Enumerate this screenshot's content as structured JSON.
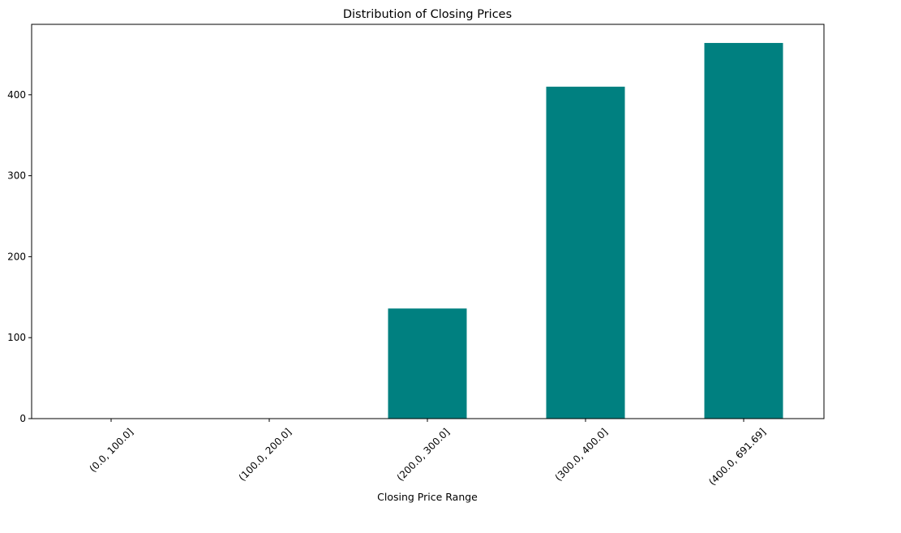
{
  "chart_data": {
    "type": "bar",
    "title": "Distribution of Closing Prices",
    "xlabel": "Closing Price Range",
    "ylabel": "",
    "categories": [
      "(0.0, 100.0]",
      "(100.0, 200.0]",
      "(200.0, 300.0]",
      "(300.0, 400.0]",
      "(400.0, 691.69]"
    ],
    "values": [
      0,
      0,
      136,
      410,
      464
    ],
    "ylim": [
      0,
      487
    ],
    "yticks": [
      0,
      100,
      200,
      300,
      400
    ],
    "bar_color": "#008080",
    "grid": false,
    "legend": "none"
  }
}
